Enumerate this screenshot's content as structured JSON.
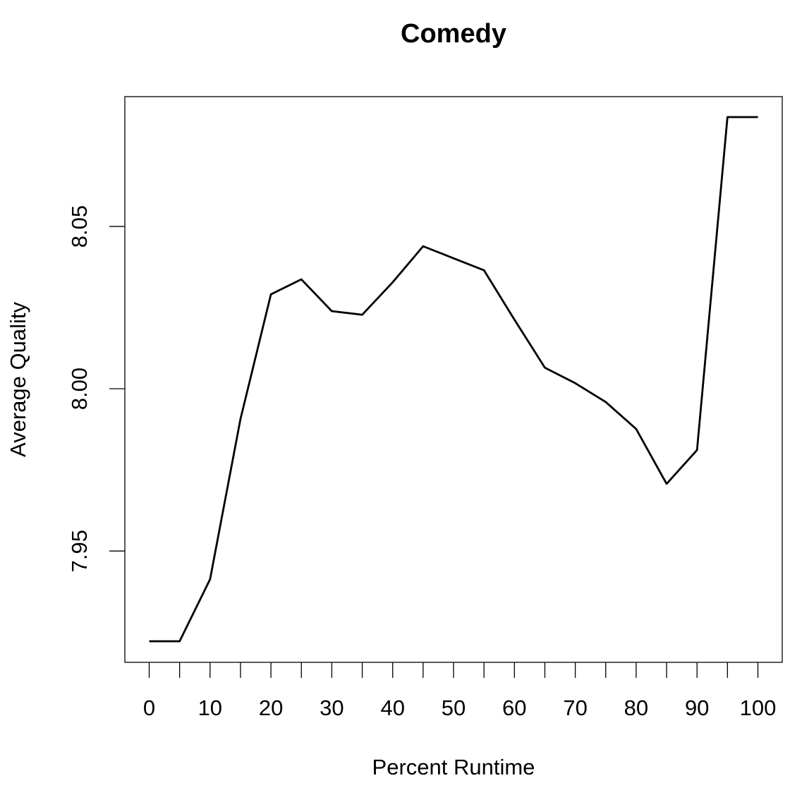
{
  "chart_data": {
    "type": "line",
    "title": "Comedy",
    "x_label": "Percent Runtime",
    "y_label": "Average Quality",
    "x": [
      0,
      5,
      10,
      15,
      20,
      25,
      30,
      35,
      40,
      45,
      50,
      55,
      60,
      65,
      70,
      75,
      80,
      85,
      90,
      95,
      100
    ],
    "series": [
      {
        "color": "#000000",
        "values": [
          7.9222,
          7.9222,
          7.9413,
          7.9907,
          8.0291,
          8.0337,
          8.0239,
          8.0228,
          8.0328,
          8.0439,
          8.0402,
          8.0365,
          8.0213,
          8.0065,
          8.0017,
          7.9959,
          7.9876,
          7.9707,
          7.9811,
          8.0837,
          8.0837
        ]
      }
    ],
    "xlim": [
      -4,
      104
    ],
    "ylim": [
      7.9157,
      8.09
    ],
    "xticks": [
      0,
      10,
      20,
      30,
      40,
      50,
      60,
      70,
      80,
      90,
      100
    ],
    "xticks_unlabeled": [
      5,
      15,
      25,
      35,
      45,
      55,
      65,
      75,
      85,
      95
    ],
    "yticks": [
      {
        "value": 7.95,
        "label": "7.95"
      },
      {
        "value": 8,
        "label": "8.00"
      },
      {
        "value": 8.05,
        "label": "8.05"
      }
    ]
  }
}
